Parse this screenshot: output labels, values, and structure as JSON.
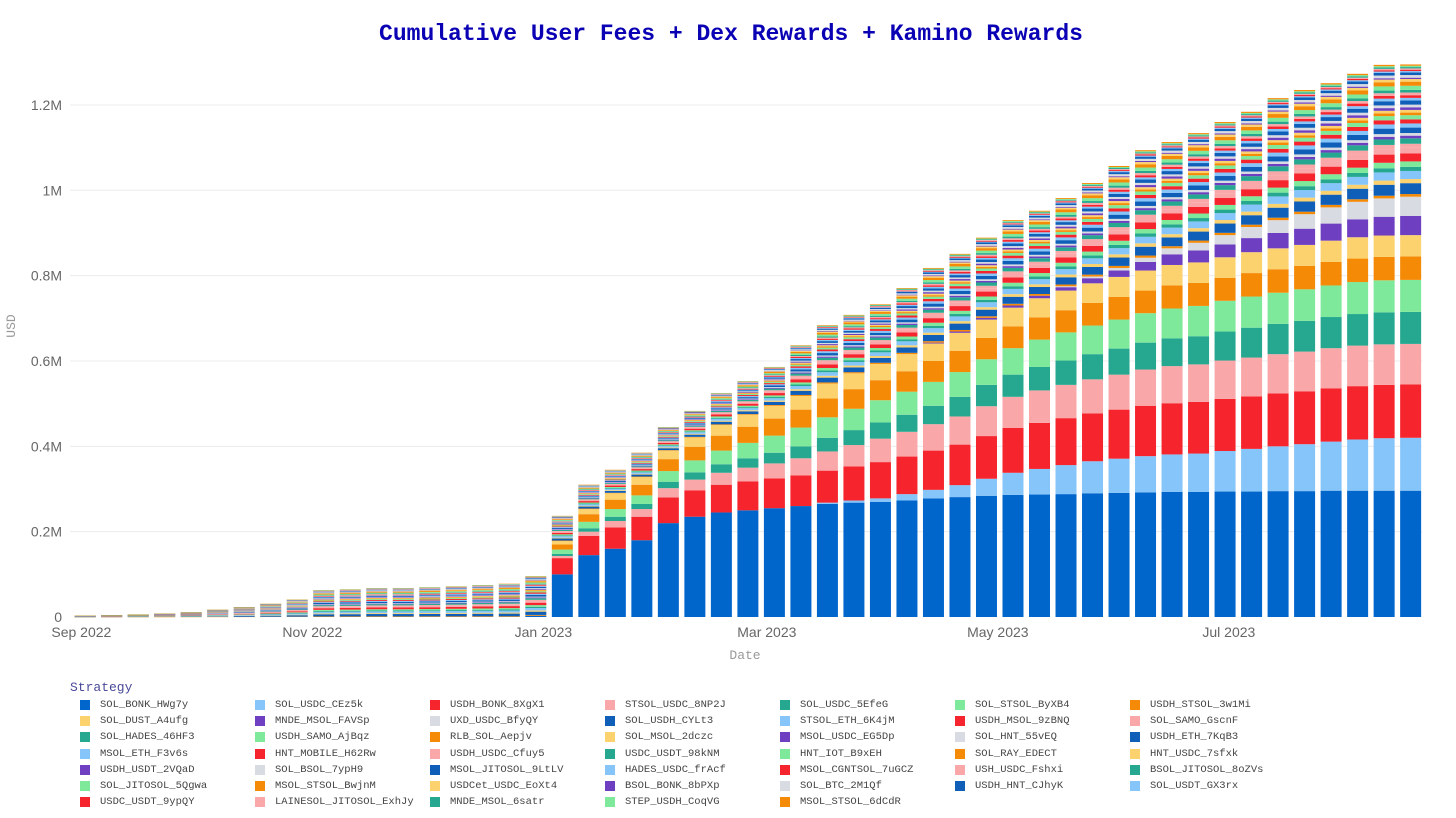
{
  "chart_data": {
    "type": "bar",
    "barmode": "stack",
    "title": "Cumulative User Fees + Dex Rewards + Kamino Rewards",
    "xlabel": "Date",
    "ylabel": "USD",
    "x_ticks": [
      "Sep 2022",
      "Nov 2022",
      "Jan 2023",
      "Mar 2023",
      "May 2023",
      "Jul 2023"
    ],
    "x_tick_dates": [
      "2022-09-01",
      "2022-11-01",
      "2023-01-01",
      "2023-03-01",
      "2023-05-01",
      "2023-07-01"
    ],
    "y_ticks": [
      "0",
      "0.2M",
      "0.4M",
      "0.6M",
      "0.8M",
      "1M",
      "1.2M"
    ],
    "y_tick_values": [
      0,
      200000,
      400000,
      600000,
      800000,
      1000000,
      1200000
    ],
    "ylim": [
      0,
      1300000
    ],
    "xlim": [
      "2022-08-29",
      "2023-08-21"
    ],
    "grid": true,
    "legend_title": "Strategy",
    "legend_position": "bottom",
    "value_unit": "thousand USD",
    "dates": [
      "2022-09-02",
      "2022-09-09",
      "2022-09-16",
      "2022-09-23",
      "2022-09-30",
      "2022-10-07",
      "2022-10-14",
      "2022-10-21",
      "2022-10-28",
      "2022-11-04",
      "2022-11-11",
      "2022-11-18",
      "2022-11-25",
      "2022-12-02",
      "2022-12-09",
      "2022-12-16",
      "2022-12-23",
      "2022-12-30",
      "2023-01-06",
      "2023-01-13",
      "2023-01-20",
      "2023-01-27",
      "2023-02-03",
      "2023-02-10",
      "2023-02-17",
      "2023-02-24",
      "2023-03-03",
      "2023-03-10",
      "2023-03-17",
      "2023-03-24",
      "2023-03-31",
      "2023-04-07",
      "2023-04-14",
      "2023-04-21",
      "2023-04-28",
      "2023-05-05",
      "2023-05-12",
      "2023-05-19",
      "2023-05-26",
      "2023-06-02",
      "2023-06-09",
      "2023-06-16",
      "2023-06-23",
      "2023-06-30",
      "2023-07-07",
      "2023-07-14",
      "2023-07-21",
      "2023-07-28",
      "2023-08-04",
      "2023-08-11",
      "2023-08-18"
    ],
    "totals": [
      3,
      4,
      6,
      8,
      11,
      17,
      23,
      31,
      41,
      63,
      65,
      68,
      68,
      70,
      72,
      75,
      78,
      96,
      237,
      310,
      345,
      385,
      445,
      483,
      525,
      553,
      586,
      637,
      684,
      708,
      733,
      771,
      818,
      851,
      889,
      930,
      952,
      982,
      1017,
      1057,
      1094,
      1113,
      1134,
      1160,
      1184,
      1216,
      1235,
      1251,
      1273,
      1294,
      1295
    ],
    "series": [
      {
        "name": "SOL_BONK_HWg7y",
        "color": "#0066cc",
        "values": [
          0,
          0,
          0,
          0,
          0,
          0,
          0,
          0,
          0,
          0,
          0,
          0,
          0,
          0,
          0,
          0,
          0,
          3,
          100,
          145,
          160,
          180,
          220,
          235,
          245,
          250,
          255,
          260,
          265,
          268,
          270,
          273,
          278,
          281,
          284,
          286,
          287,
          288,
          290,
          291,
          292,
          293,
          293,
          294,
          294,
          295,
          295,
          296,
          296,
          296,
          296
        ]
      },
      {
        "name": "SOL_USDC_CEz5k",
        "color": "#86c5f9",
        "values": [
          0,
          0,
          0,
          0,
          0,
          0,
          0,
          0,
          0,
          0,
          0,
          0,
          0,
          0,
          0,
          0,
          0,
          0,
          0,
          0,
          0,
          0,
          0,
          0,
          0,
          0,
          0,
          0,
          3,
          5,
          8,
          15,
          20,
          28,
          40,
          52,
          60,
          68,
          75,
          80,
          85,
          88,
          90,
          95,
          100,
          105,
          110,
          115,
          120,
          123,
          124
        ]
      },
      {
        "name": "USDH_BONK_8XgX1",
        "color": "#f5242d",
        "values": [
          0,
          0,
          0,
          0,
          0,
          0,
          0,
          0,
          0,
          0,
          0,
          0,
          0,
          0,
          0,
          0,
          0,
          0,
          38,
          45,
          50,
          55,
          60,
          62,
          65,
          68,
          70,
          72,
          75,
          80,
          85,
          88,
          92,
          95,
          100,
          105,
          108,
          110,
          112,
          115,
          118,
          120,
          121,
          122,
          123,
          124,
          124,
          125,
          125,
          125,
          125
        ]
      },
      {
        "name": "STSOL_USDC_8NP2J",
        "color": "#f9a7a8",
        "values": [
          0,
          0,
          0,
          0,
          0,
          0,
          0,
          0,
          0,
          0,
          0,
          0,
          0,
          0,
          0,
          0,
          0,
          0,
          5,
          10,
          15,
          18,
          22,
          25,
          28,
          32,
          35,
          40,
          45,
          50,
          55,
          58,
          62,
          66,
          70,
          73,
          76,
          78,
          80,
          82,
          85,
          87,
          88,
          90,
          91,
          92,
          93,
          94,
          95,
          95,
          95
        ]
      },
      {
        "name": "SOL_USDC_5EfeG",
        "color": "#25a88f",
        "values": [
          0,
          0,
          0,
          0,
          0,
          0,
          0,
          0,
          0,
          0,
          0,
          0,
          0,
          0,
          0,
          0,
          0,
          0,
          5,
          8,
          10,
          12,
          15,
          17,
          20,
          22,
          25,
          28,
          32,
          35,
          38,
          40,
          43,
          46,
          50,
          52,
          55,
          57,
          59,
          61,
          63,
          65,
          66,
          68,
          70,
          71,
          72,
          73,
          74,
          75,
          75
        ]
      },
      {
        "name": "SOL_STSOL_ByXB4",
        "color": "#7ee99a",
        "values": [
          0,
          0,
          0,
          0,
          0,
          0,
          0,
          0,
          0,
          0,
          0,
          0,
          0,
          0,
          0,
          0,
          0,
          0,
          10,
          15,
          18,
          20,
          25,
          28,
          32,
          36,
          40,
          44,
          48,
          50,
          52,
          54,
          56,
          58,
          60,
          62,
          64,
          66,
          67,
          68,
          69,
          70,
          71,
          72,
          73,
          73,
          74,
          74,
          75,
          75,
          75
        ]
      },
      {
        "name": "USDH_STSOL_3w1Mi",
        "color": "#f58a07",
        "values": [
          0,
          0,
          0,
          0,
          0,
          0,
          0,
          0,
          0,
          0,
          0,
          0,
          0,
          0,
          0,
          0,
          0,
          0,
          12,
          18,
          22,
          25,
          28,
          32,
          35,
          38,
          40,
          42,
          44,
          46,
          47,
          48,
          49,
          50,
          50,
          51,
          52,
          52,
          53,
          53,
          53,
          54,
          54,
          54,
          55,
          55,
          55,
          55,
          55,
          55,
          55
        ]
      },
      {
        "name": "SOL_DUST_A4ufg",
        "color": "#fcd26e",
        "values": [
          0,
          0,
          0,
          0,
          0,
          0,
          0,
          0,
          0,
          0,
          0,
          0,
          0,
          0,
          0,
          0,
          0,
          0,
          8,
          12,
          15,
          18,
          20,
          22,
          25,
          28,
          30,
          32,
          35,
          37,
          38,
          40,
          41,
          42,
          43,
          44,
          45,
          46,
          46,
          47,
          47,
          48,
          48,
          48,
          49,
          49,
          49,
          50,
          50,
          50,
          50
        ]
      },
      {
        "name": "MNDE_MSOL_FAVSp",
        "color": "#6f3fc2",
        "values": [
          0,
          0,
          0,
          0,
          0,
          0,
          0,
          0,
          0,
          0,
          0,
          0,
          0,
          0,
          0,
          0,
          0,
          0,
          0,
          0,
          0,
          0,
          0,
          0,
          0,
          0,
          0,
          0,
          0,
          0,
          0,
          0,
          2,
          3,
          4,
          5,
          6,
          8,
          12,
          15,
          20,
          25,
          28,
          30,
          33,
          36,
          38,
          40,
          42,
          44,
          45
        ]
      },
      {
        "name": "UXD_USDC_BfyQY",
        "color": "#d8dbe2",
        "values": [
          0,
          0,
          0,
          0,
          0,
          0,
          0,
          0,
          0,
          0,
          0,
          0,
          0,
          0,
          0,
          0,
          0,
          0,
          0,
          0,
          0,
          0,
          0,
          0,
          0,
          0,
          0,
          0,
          0,
          0,
          0,
          0,
          0,
          0,
          0,
          0,
          0,
          2,
          4,
          6,
          10,
          14,
          18,
          22,
          26,
          30,
          34,
          38,
          41,
          43,
          45
        ]
      }
    ],
    "other_series_note": "Remaining strategies: per-date combined value split by share",
    "other_series_totals": [
      3,
      4,
      6,
      8,
      11,
      17,
      23,
      31,
      41,
      63,
      65,
      68,
      68,
      70,
      72,
      75,
      78,
      93,
      59,
      57,
      55,
      57,
      55,
      62,
      75,
      79,
      91,
      119,
      137,
      137,
      140,
      155,
      175,
      182,
      188,
      200,
      199,
      207,
      219,
      239,
      252,
      249,
      257,
      265,
      270,
      286,
      291,
      291,
      300,
      313,
      310
    ],
    "other_series": [
      {
        "name": "RLB_SOL_Aepjv",
        "color": "#f58a07",
        "share": 0.02
      },
      {
        "name": "SOL_USDH_CYLt3",
        "color": "#0f5fb8",
        "share": 0.082
      },
      {
        "name": "SOL_MSOL_2dczc",
        "color": "#fcd26e",
        "share": 0.031
      },
      {
        "name": "STSOL_ETH_6K4jM",
        "color": "#86c5f9",
        "share": 0.061
      },
      {
        "name": "SOL_HADES_46HF3",
        "color": "#25a88f",
        "share": 0.031
      },
      {
        "name": "USDH_SAMO_AjBqz",
        "color": "#7ee99a",
        "share": 0.041
      },
      {
        "name": "USDH_MSOL_9zBNQ",
        "color": "#f5242d",
        "share": 0.061
      },
      {
        "name": "SOL_SAMO_GscnF",
        "color": "#f9a7a8",
        "share": 0.041
      },
      {
        "name": "USDH_USDC_Cfuy5",
        "color": "#f9a7a8",
        "share": 0.031
      },
      {
        "name": "USDC_USDT_98kNM",
        "color": "#25a88f",
        "share": 0.041
      },
      {
        "name": "MSOL_USDC_EG5Dp",
        "color": "#6f3fc2",
        "share": 0.02
      },
      {
        "name": "SOL_HNT_55vEQ",
        "color": "#d8dbe2",
        "share": 0.02
      },
      {
        "name": "USDH_ETH_7KqB3",
        "color": "#0f5fb8",
        "share": 0.041
      },
      {
        "name": "MSOL_ETH_F3v6s",
        "color": "#86c5f9",
        "share": 0.031
      },
      {
        "name": "HNT_MOBILE_H62Rw",
        "color": "#f5242d",
        "share": 0.031
      },
      {
        "name": "HNT_IOT_B9xEH",
        "color": "#7ee99a",
        "share": 0.031
      },
      {
        "name": "SOL_RAY_EDECT",
        "color": "#f58a07",
        "share": 0.02
      },
      {
        "name": "HNT_USDC_7sfxk",
        "color": "#fcd26e",
        "share": 0.02
      },
      {
        "name": "USDH_USDT_2VQaD",
        "color": "#6f3fc2",
        "share": 0.02
      },
      {
        "name": "SOL_BSOL_7ypH9",
        "color": "#d8dbe2",
        "share": 0.02
      },
      {
        "name": "MSOL_JITOSOL_9LtLV",
        "color": "#0f5fb8",
        "share": 0.031
      },
      {
        "name": "HADES_USDC_frAcf",
        "color": "#86c5f9",
        "share": 0.02
      },
      {
        "name": "MSOL_CGNTSOL_7uGCZ",
        "color": "#f5242d",
        "share": 0.02
      },
      {
        "name": "USH_USDC_Fshxi",
        "color": "#f9a7a8",
        "share": 0.02
      },
      {
        "name": "BSOL_JITOSOL_8oZVs",
        "color": "#25a88f",
        "share": 0.02
      },
      {
        "name": "SOL_JITOSOL_5Qgwa",
        "color": "#7ee99a",
        "share": 0.031
      },
      {
        "name": "MSOL_STSOL_BwjnM",
        "color": "#f58a07",
        "share": 0.031
      },
      {
        "name": "USDCet_USDC_EoXt4",
        "color": "#fcd26e",
        "share": 0.02
      },
      {
        "name": "BSOL_BONK_8bPXp",
        "color": "#6f3fc2",
        "share": 0.01
      },
      {
        "name": "SOL_BTC_2M1Qf",
        "color": "#d8dbe2",
        "share": 0.02
      },
      {
        "name": "USDH_HNT_CJhyK",
        "color": "#0f5fb8",
        "share": 0.02
      },
      {
        "name": "SOL_USDT_GX3rx",
        "color": "#86c5f9",
        "share": 0.01
      },
      {
        "name": "USDC_USDT_9ypQY",
        "color": "#f5242d",
        "share": 0.01
      },
      {
        "name": "LAINESOL_JITOSOL_ExhJy",
        "color": "#f9a7a8",
        "share": 0.01
      },
      {
        "name": "MNDE_MSOL_6satr",
        "color": "#25a88f",
        "share": 0.01
      },
      {
        "name": "STEP_USDH_CoqVG",
        "color": "#7ee99a",
        "share": 0.01
      },
      {
        "name": "MSOL_STSOL_6dCdR",
        "color": "#f58a07",
        "share": 0.01
      }
    ]
  },
  "legend": {
    "title": "Strategy",
    "items": [
      {
        "label": "SOL_BONK_HWg7y",
        "color": "#0066cc"
      },
      {
        "label": "SOL_USDC_CEz5k",
        "color": "#86c5f9"
      },
      {
        "label": "USDH_BONK_8XgX1",
        "color": "#f5242d"
      },
      {
        "label": "STSOL_USDC_8NP2J",
        "color": "#f9a7a8"
      },
      {
        "label": "SOL_USDC_5EfeG",
        "color": "#25a88f"
      },
      {
        "label": "SOL_STSOL_ByXB4",
        "color": "#7ee99a"
      },
      {
        "label": "USDH_STSOL_3w1Mi",
        "color": "#f58a07"
      },
      {
        "label": "SOL_DUST_A4ufg",
        "color": "#fcd26e"
      },
      {
        "label": "MNDE_MSOL_FAVSp",
        "color": "#6f3fc2"
      },
      {
        "label": "UXD_USDC_BfyQY",
        "color": "#d8dbe2"
      },
      {
        "label": "SOL_USDH_CYLt3",
        "color": "#0f5fb8"
      },
      {
        "label": "STSOL_ETH_6K4jM",
        "color": "#86c5f9"
      },
      {
        "label": "USDH_MSOL_9zBNQ",
        "color": "#f5242d"
      },
      {
        "label": "SOL_SAMO_GscnF",
        "color": "#f9a7a8"
      },
      {
        "label": "SOL_HADES_46HF3",
        "color": "#25a88f"
      },
      {
        "label": "USDH_SAMO_AjBqz",
        "color": "#7ee99a"
      },
      {
        "label": "RLB_SOL_Aepjv",
        "color": "#f58a07"
      },
      {
        "label": "SOL_MSOL_2dczc",
        "color": "#fcd26e"
      },
      {
        "label": "MSOL_USDC_EG5Dp",
        "color": "#6f3fc2"
      },
      {
        "label": "SOL_HNT_55vEQ",
        "color": "#d8dbe2"
      },
      {
        "label": "USDH_ETH_7KqB3",
        "color": "#0f5fb8"
      },
      {
        "label": "MSOL_ETH_F3v6s",
        "color": "#86c5f9"
      },
      {
        "label": "HNT_MOBILE_H62Rw",
        "color": "#f5242d"
      },
      {
        "label": "USDH_USDC_Cfuy5",
        "color": "#f9a7a8"
      },
      {
        "label": "USDC_USDT_98kNM",
        "color": "#25a88f"
      },
      {
        "label": "HNT_IOT_B9xEH",
        "color": "#7ee99a"
      },
      {
        "label": "SOL_RAY_EDECT",
        "color": "#f58a07"
      },
      {
        "label": "HNT_USDC_7sfxk",
        "color": "#fcd26e"
      },
      {
        "label": "USDH_USDT_2VQaD",
        "color": "#6f3fc2"
      },
      {
        "label": "SOL_BSOL_7ypH9",
        "color": "#d8dbe2"
      },
      {
        "label": "MSOL_JITOSOL_9LtLV",
        "color": "#0f5fb8"
      },
      {
        "label": "HADES_USDC_frAcf",
        "color": "#86c5f9"
      },
      {
        "label": "MSOL_CGNTSOL_7uGCZ",
        "color": "#f5242d"
      },
      {
        "label": "USH_USDC_Fshxi",
        "color": "#f9a7a8"
      },
      {
        "label": "BSOL_JITOSOL_8oZVs",
        "color": "#25a88f"
      },
      {
        "label": "SOL_JITOSOL_5Qgwa",
        "color": "#7ee99a"
      },
      {
        "label": "MSOL_STSOL_BwjnM",
        "color": "#f58a07"
      },
      {
        "label": "USDCet_USDC_EoXt4",
        "color": "#fcd26e"
      },
      {
        "label": "BSOL_BONK_8bPXp",
        "color": "#6f3fc2"
      },
      {
        "label": "SOL_BTC_2M1Qf",
        "color": "#d8dbe2"
      },
      {
        "label": "USDH_HNT_CJhyK",
        "color": "#0f5fb8"
      },
      {
        "label": "SOL_USDT_GX3rx",
        "color": "#86c5f9"
      },
      {
        "label": "USDC_USDT_9ypQY",
        "color": "#f5242d"
      },
      {
        "label": "LAINESOL_JITOSOL_ExhJy",
        "color": "#f9a7a8"
      },
      {
        "label": "MNDE_MSOL_6satr",
        "color": "#25a88f"
      },
      {
        "label": "STEP_USDH_CoqVG",
        "color": "#7ee99a"
      },
      {
        "label": "MSOL_STSOL_6dCdR",
        "color": "#f58a07"
      }
    ]
  }
}
